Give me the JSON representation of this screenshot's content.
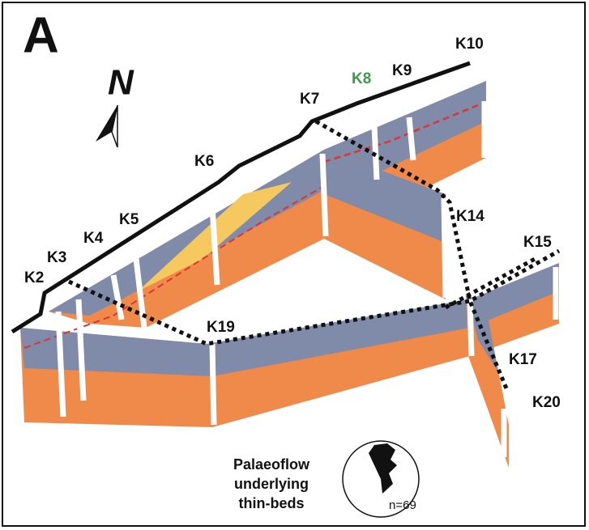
{
  "panel_label": "A",
  "north": "N",
  "well_labels": [
    "K10",
    "K9",
    "K8",
    "K7",
    "K6",
    "K5",
    "K4",
    "K3",
    "K2",
    "K14",
    "K15",
    "K19",
    "K17",
    "K20"
  ],
  "legend": {
    "lines": [
      "Palaeoflow",
      "underlying",
      "thin-beds"
    ],
    "count": "n=69"
  }
}
